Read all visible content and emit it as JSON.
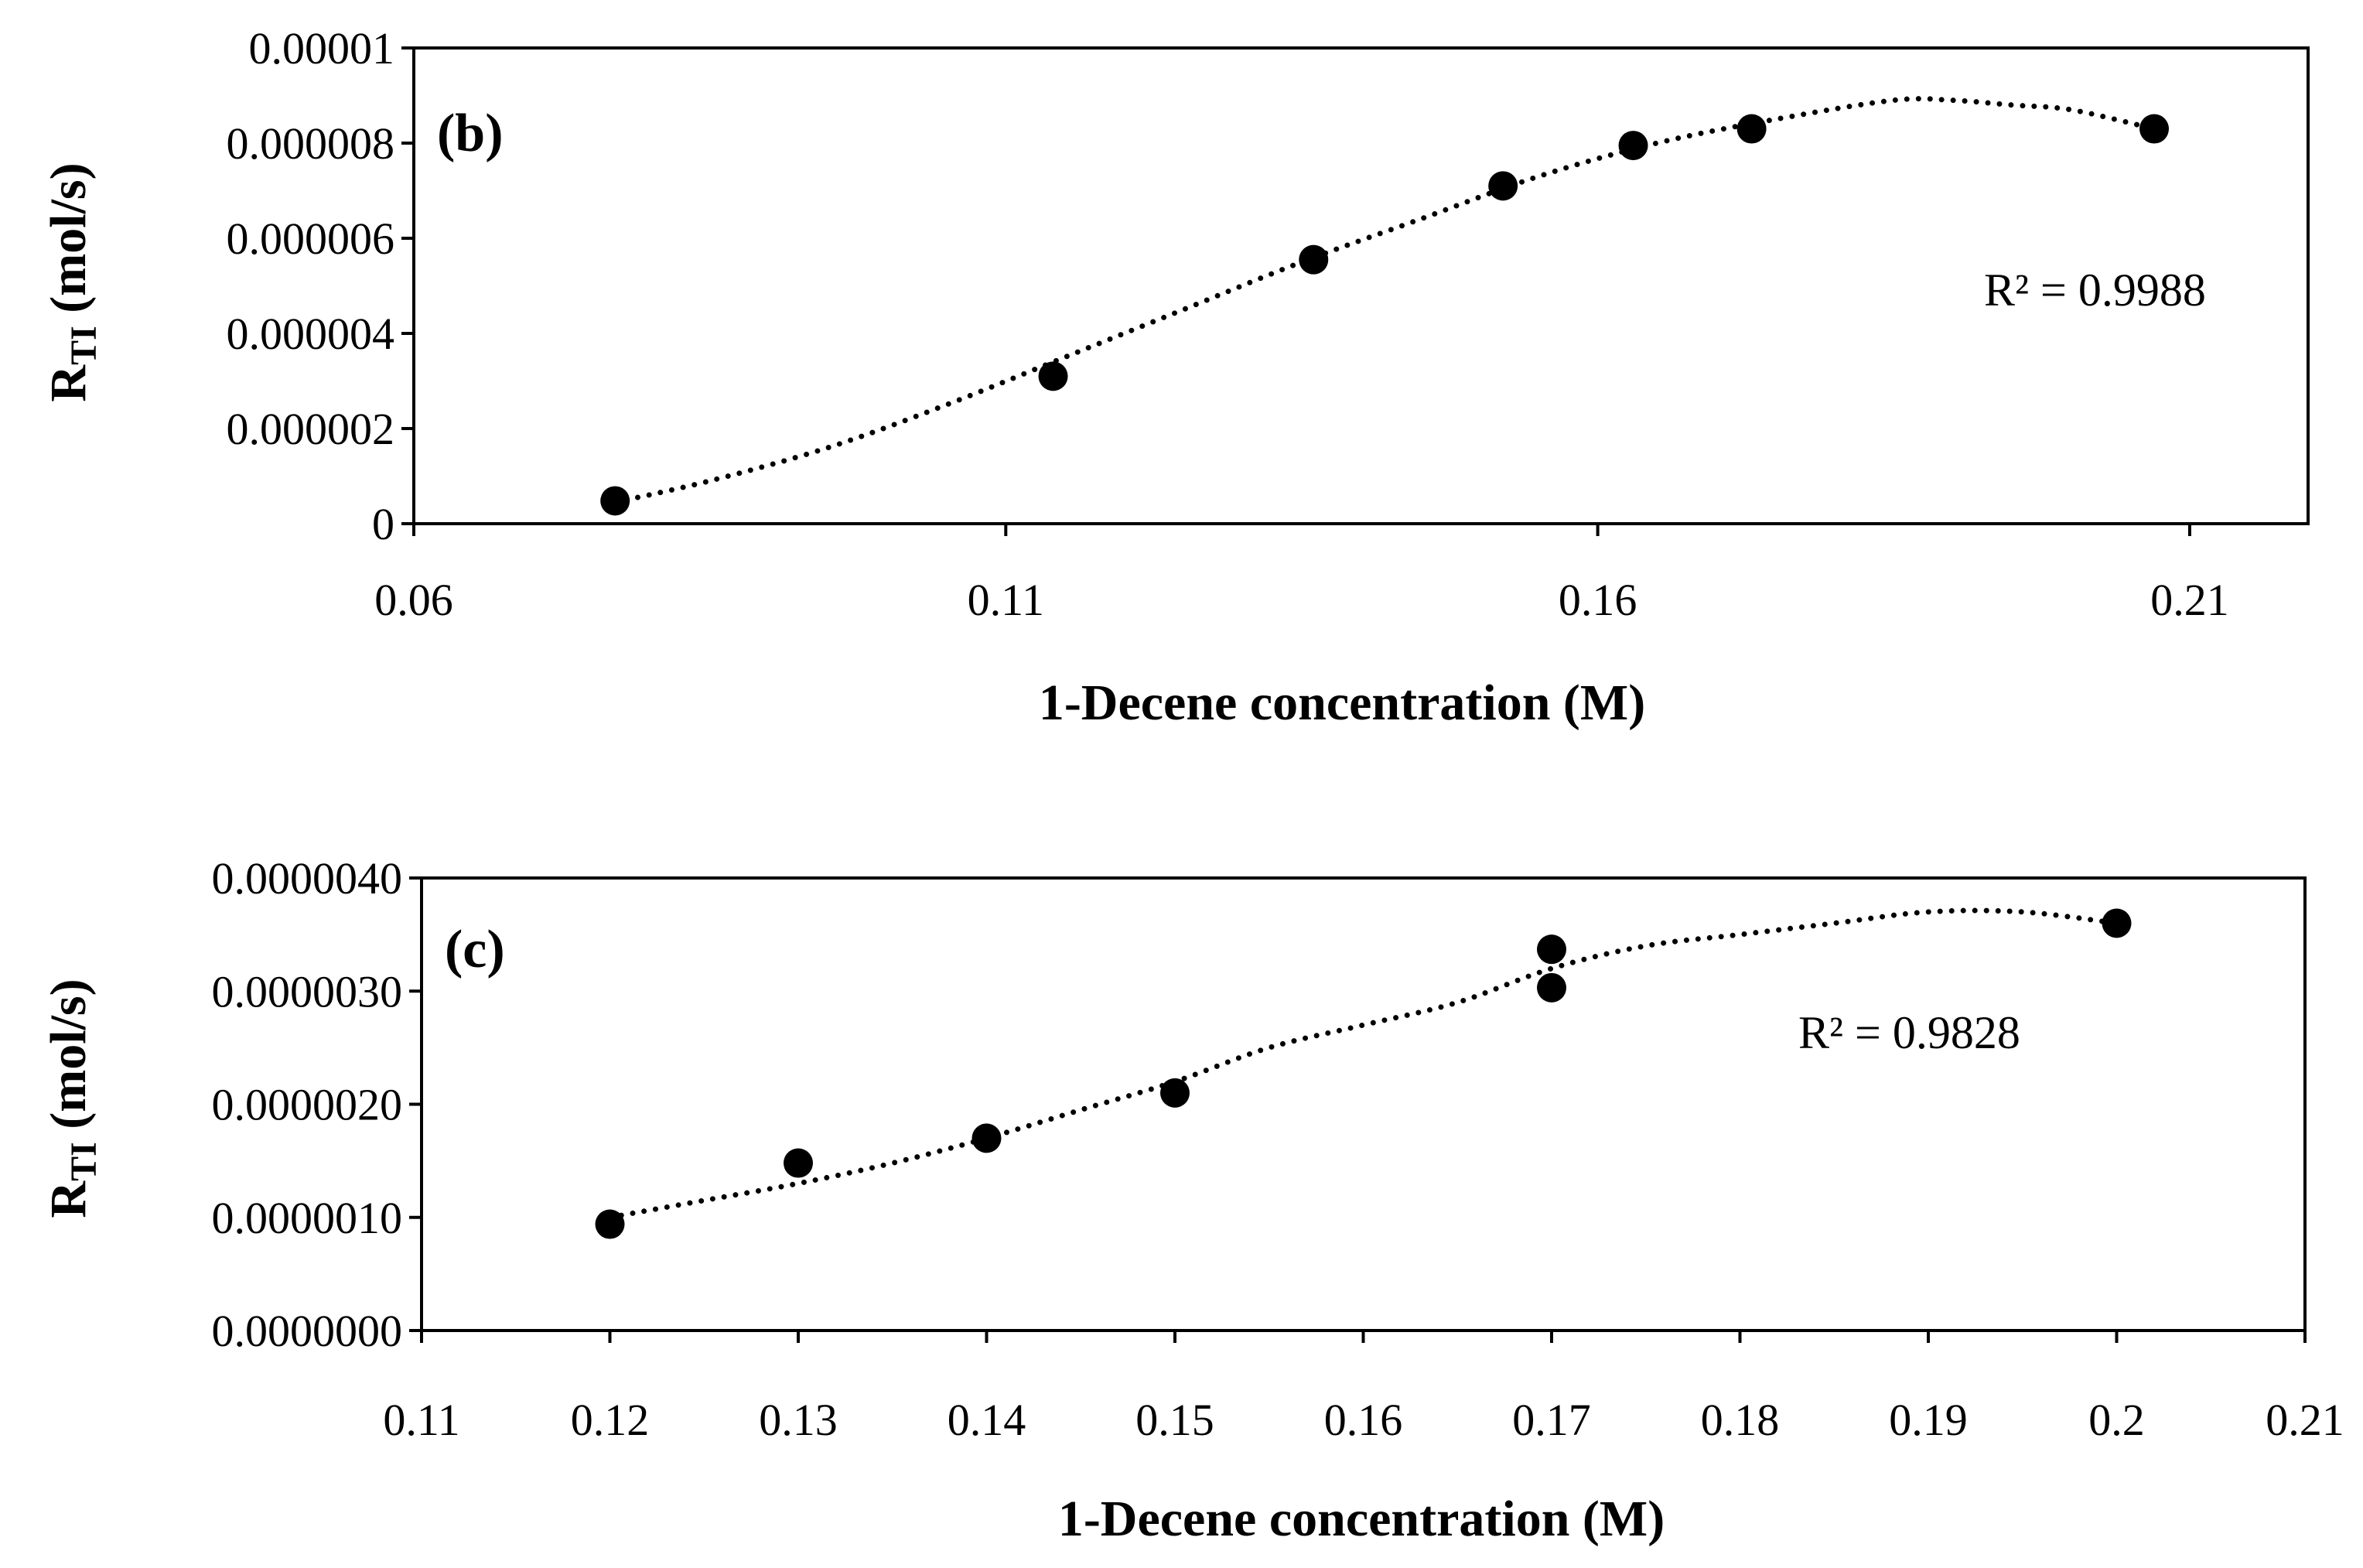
{
  "chart_data": [
    {
      "type": "scatter",
      "panel_label": "(b)",
      "xlabel": "1-Decene concentration (M)",
      "ylabel_main": "R",
      "ylabel_sub": "TI",
      "ylabel_unit": " (mol/s)",
      "xlim": [
        0.06,
        0.22
      ],
      "ylim": [
        0,
        1e-05
      ],
      "x_ticks": [
        0.06,
        0.11,
        0.16,
        0.21
      ],
      "x_tick_labels": [
        "0.06",
        "0.11",
        "0.16",
        "0.21"
      ],
      "y_ticks": [
        0,
        2e-06,
        4e-06,
        6e-06,
        8e-06,
        1e-05
      ],
      "y_tick_labels": [
        "0",
        "0.000002",
        "0.000004",
        "0.000006",
        "0.000008",
        "0.00001"
      ],
      "grid": false,
      "series": [
        {
          "name": "data",
          "x": [
            0.077,
            0.114,
            0.136,
            0.152,
            0.163,
            0.173,
            0.207
          ],
          "y": [
            4.8e-07,
            3.1e-06,
            5.55e-06,
            7.1e-06,
            7.95e-06,
            8.3e-06,
            8.3e-06
          ]
        }
      ],
      "trendline": {
        "style": "dotted",
        "x": [
          0.077,
          0.085,
          0.095,
          0.105,
          0.115,
          0.125,
          0.135,
          0.145,
          0.155,
          0.165,
          0.175,
          0.185,
          0.19,
          0.195,
          0.2,
          0.207
        ],
        "y": [
          4.5e-07,
          9e-07,
          1.6e-06,
          2.5e-06,
          3.5e-06,
          4.5e-06,
          5.5e-06,
          6.4e-06,
          7.3e-06,
          8e-06,
          8.5e-06,
          8.9e-06,
          8.9e-06,
          8.8e-06,
          8.7e-06,
          8.3e-06
        ]
      },
      "annotation": "R² = 0.9988"
    },
    {
      "type": "scatter",
      "panel_label": "(c)",
      "xlabel": "1-Decene concentration (M)",
      "ylabel_main": "R",
      "ylabel_sub": "TI",
      "ylabel_unit": " (mol/s)",
      "xlim": [
        0.11,
        0.21
      ],
      "ylim": [
        0,
        4e-06
      ],
      "x_ticks": [
        0.11,
        0.12,
        0.13,
        0.14,
        0.15,
        0.16,
        0.17,
        0.18,
        0.19,
        0.2,
        0.21
      ],
      "x_tick_labels": [
        "0.11",
        "0.12",
        "0.13",
        "0.14",
        "0.15",
        "0.16",
        "0.17",
        "0.18",
        "0.19",
        "0.2",
        "0.21"
      ],
      "y_ticks": [
        0,
        1e-06,
        2e-06,
        3e-06,
        4e-06
      ],
      "y_tick_labels": [
        "0.0000000",
        "0.0000010",
        "0.0000020",
        "0.0000030",
        "0.0000040"
      ],
      "grid": false,
      "series": [
        {
          "name": "data",
          "x": [
            0.12,
            0.13,
            0.14,
            0.15,
            0.17,
            0.17,
            0.2
          ],
          "y": [
            9.4e-07,
            1.48e-06,
            1.7e-06,
            2.1e-06,
            3.37e-06,
            3.03e-06,
            3.6e-06
          ]
        }
      ],
      "trendline": {
        "style": "dotted",
        "x": [
          0.12,
          0.125,
          0.13,
          0.135,
          0.14,
          0.145,
          0.15,
          0.155,
          0.16,
          0.165,
          0.17,
          0.175,
          0.18,
          0.185,
          0.19,
          0.195,
          0.2
        ],
        "y": [
          1e-06,
          1.15e-06,
          1.3e-06,
          1.48e-06,
          1.7e-06,
          1.95e-06,
          2.2e-06,
          2.5e-06,
          2.7e-06,
          2.9e-06,
          3.2e-06,
          3.4e-06,
          3.5e-06,
          3.6e-06,
          3.7e-06,
          3.7e-06,
          3.6e-06
        ]
      },
      "annotation": "R² = 0.9828"
    }
  ]
}
